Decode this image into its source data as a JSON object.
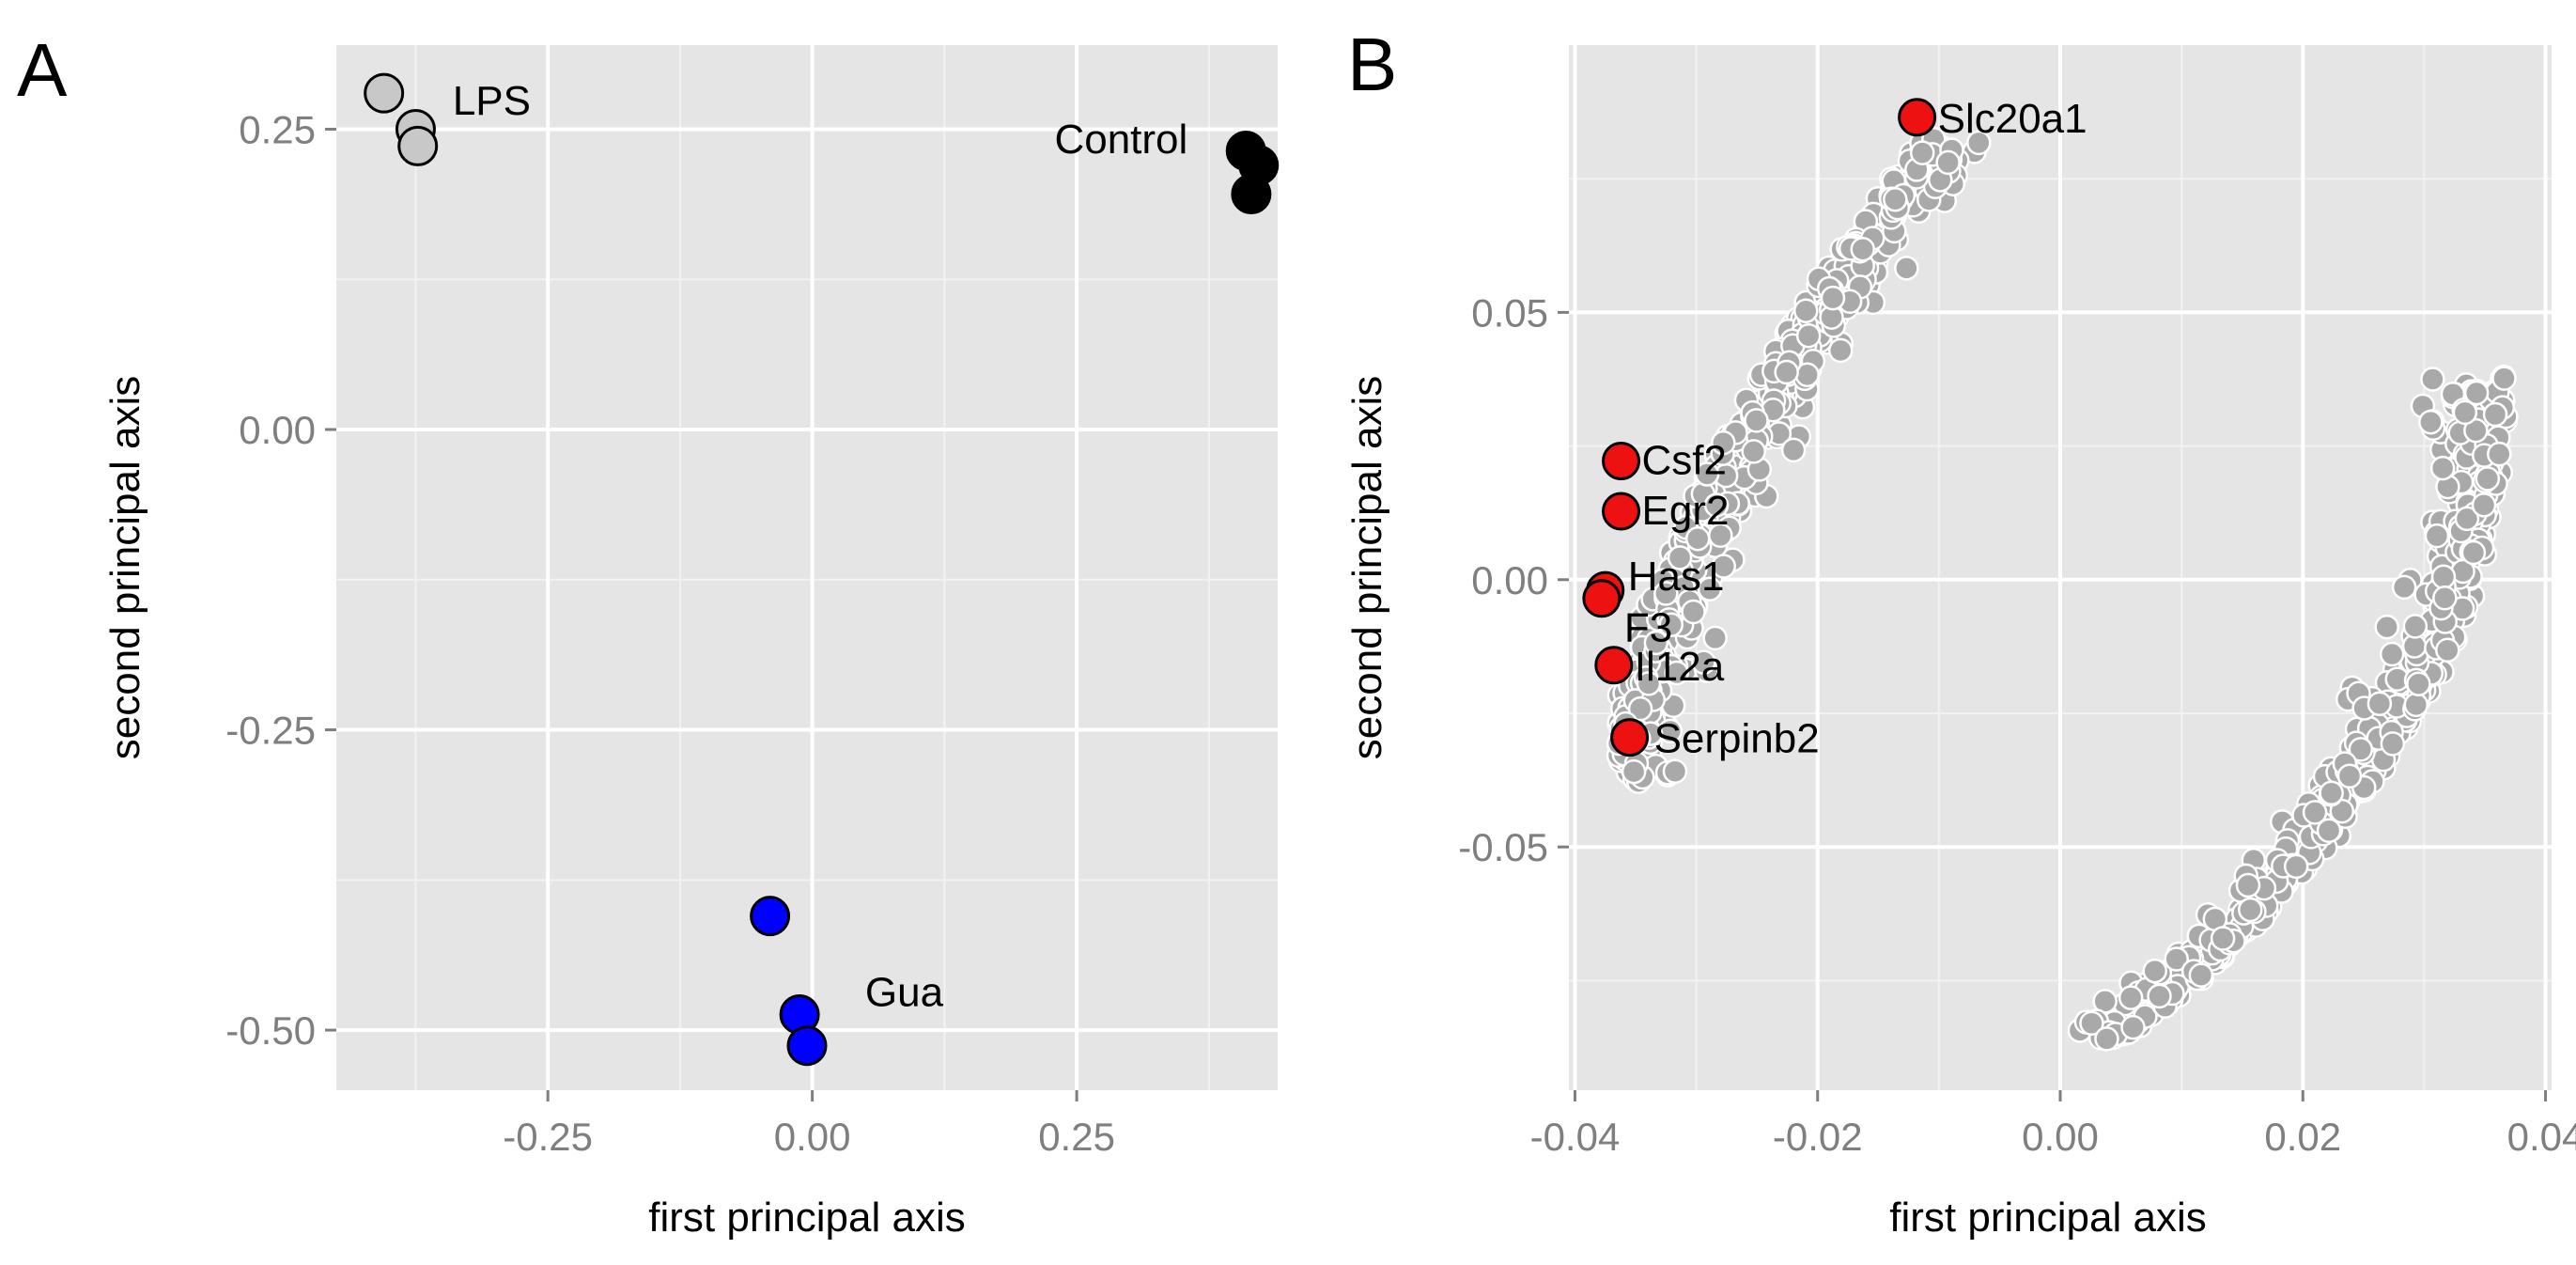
{
  "chart_data": [
    {
      "panel": "A",
      "type": "scatter",
      "xlabel": "first principal axis",
      "ylabel": "second principal axis",
      "xlim": [
        -0.45,
        0.44
      ],
      "ylim": [
        -0.55,
        0.32
      ],
      "x_ticks": [
        -0.25,
        0.0,
        0.25
      ],
      "x_tick_labels": [
        "-0.25",
        "0.00",
        "0.25"
      ],
      "y_ticks": [
        -0.5,
        -0.25,
        0.0,
        0.25
      ],
      "y_tick_labels": [
        "-0.50",
        "-0.25",
        "0.00",
        "0.25"
      ],
      "grid": true,
      "series": [
        {
          "name": "LPS",
          "color": "#c8c8c8",
          "x": [
            -0.405,
            -0.375,
            -0.373
          ],
          "y": [
            0.28,
            0.25,
            0.236
          ]
        },
        {
          "name": "Control",
          "color": "#000000",
          "x": [
            0.41,
            0.422,
            0.415
          ],
          "y": [
            0.232,
            0.22,
            0.196
          ]
        },
        {
          "name": "Gua",
          "color": "#0000ff",
          "x": [
            -0.04,
            -0.012,
            -0.005
          ],
          "y": [
            -0.405,
            -0.487,
            -0.513
          ]
        }
      ],
      "annotations": [
        {
          "text": "LPS",
          "x": -0.34,
          "y": 0.262
        },
        {
          "text": "Control",
          "x": 0.355,
          "y": 0.23
        },
        {
          "text": "Gua",
          "x": 0.05,
          "y": -0.48
        }
      ]
    },
    {
      "panel": "B",
      "type": "scatter",
      "xlabel": "first principal axis",
      "ylabel": "second principal axis",
      "xlim": [
        -0.0405,
        0.0405
      ],
      "ylim": [
        -0.0955,
        0.1
      ],
      "x_ticks": [
        -0.04,
        -0.02,
        0.0,
        0.02,
        0.04
      ],
      "x_tick_labels": [
        "-0.04",
        "-0.02",
        "0.00",
        "0.02",
        "0.04"
      ],
      "y_ticks": [
        -0.05,
        0.0,
        0.05
      ],
      "y_tick_labels": [
        "-0.05",
        "0.00",
        "0.05"
      ],
      "grid": true,
      "background_points_color": "#a9a9a9",
      "highlight_color": "#ee1111",
      "highlighted_genes": [
        {
          "label": "Slc20a1",
          "x": -0.0118,
          "y": 0.0865
        },
        {
          "label": "Csf2",
          "x": -0.0362,
          "y": 0.0222
        },
        {
          "label": "Egr2",
          "x": -0.0362,
          "y": 0.0128
        },
        {
          "label": "Has1",
          "x": -0.0375,
          "y": -0.002
        },
        {
          "label": "F3",
          "x": -0.0378,
          "y": -0.0035
        },
        {
          "label": "Il12a",
          "x": -0.0368,
          "y": -0.016
        },
        {
          "label": "Serpinb2",
          "x": -0.0355,
          "y": -0.0295
        }
      ]
    }
  ],
  "panels": {
    "a": {
      "label": "A"
    },
    "b": {
      "label": "B"
    }
  }
}
